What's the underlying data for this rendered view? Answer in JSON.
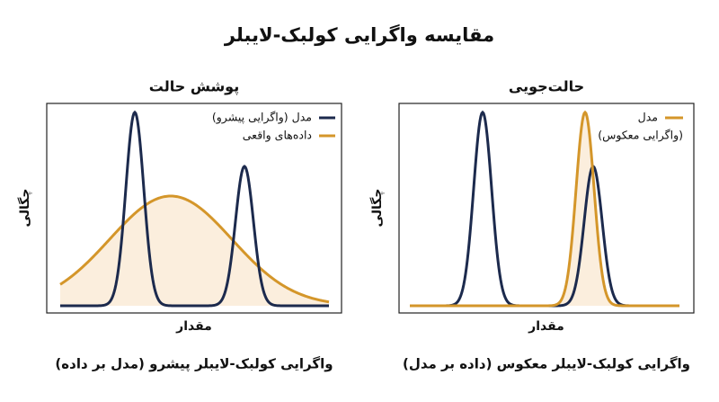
{
  "title": "مقایسه واگرایی کولبک-لایبلر",
  "panels": [
    {
      "title": "پوشش حالت",
      "legend": [
        {
          "label": "مدل (واگرایی پیشرو)"
        },
        {
          "label": "داده‌های واقعی"
        }
      ],
      "y_label": "چگالی",
      "x_label": "مقدار",
      "caption": "واگرایی کولبک-لایبلر پیشرو (مدل بر داده)"
    },
    {
      "title": "حالت‌جویی",
      "legend": [
        {
          "label": "مدل",
          "note": "(واگرایی معکوس)"
        }
      ],
      "y_label": "چگالی",
      "x_label": "مقدار",
      "caption": "واگرایی کولبک-لایبلر معکوس (داده بر مدل)"
    }
  ]
}
